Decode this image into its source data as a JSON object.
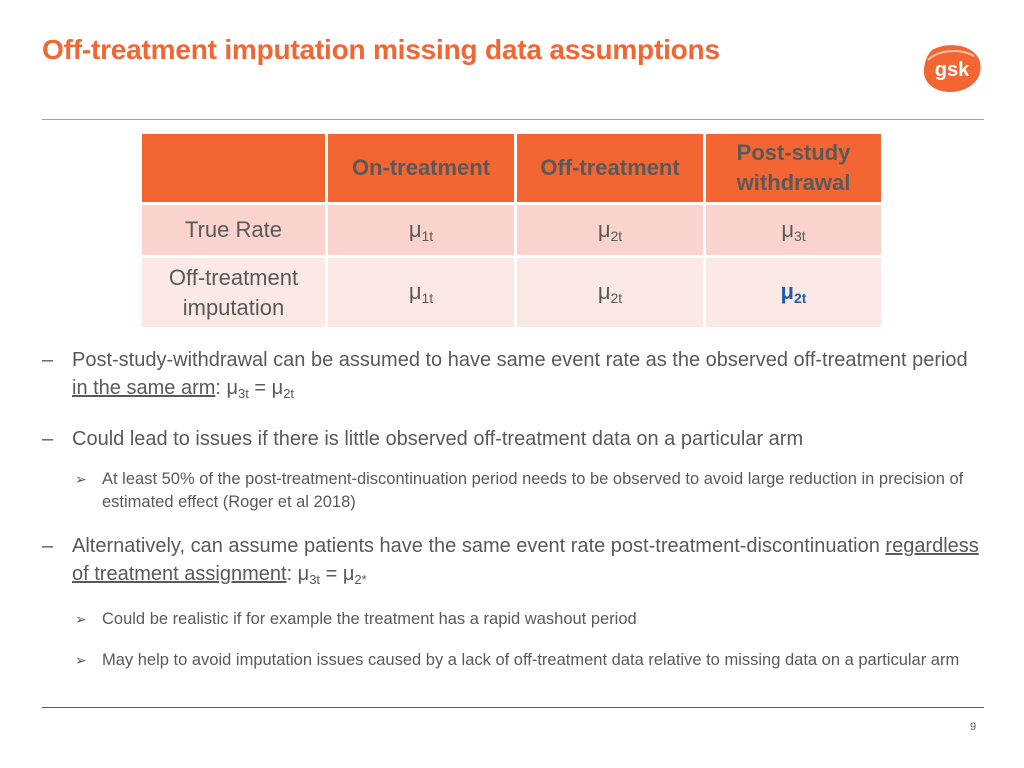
{
  "title": "Off-treatment imputation missing data assumptions",
  "logo_text": "gsk",
  "table": {
    "headers": [
      "",
      "On-treatment",
      "Off-treatment",
      "Post-study withdrawal"
    ],
    "rows": [
      {
        "label": "True Rate",
        "cells": [
          [
            "μ",
            "1t"
          ],
          [
            "μ",
            "2t"
          ],
          [
            "μ",
            "3t"
          ]
        ]
      },
      {
        "label": "Off-treatment imputation",
        "cells": [
          [
            "μ",
            "1t"
          ],
          [
            "μ",
            "2t"
          ],
          [
            "μ",
            "2t"
          ]
        ]
      }
    ]
  },
  "bullets": {
    "b1": {
      "marker": "–",
      "text": "Post-study-withdrawal can be assumed to have same event rate as the observed off-treatment period ",
      "underlined": "in the same arm",
      "eq": ": μ",
      "sub1": "3t",
      "eq2": " = μ",
      "sub2": "2t"
    },
    "b2": {
      "marker": "–",
      "text": "Could lead to issues if there is little observed off-treatment data on a particular arm"
    },
    "b2a": {
      "marker": "➢",
      "text": "At least 50% of the post-treatment-discontinuation period needs to be observed to avoid large reduction in precision of estimated effect (Roger et al 2018)"
    },
    "b3": {
      "marker": "–",
      "text": "Alternatively, can assume patients have the same event rate post-treatment-discontinuation ",
      "underlined": "regardless of treatment assignment",
      "eq": ": μ",
      "sub1": "3t",
      "eq2": " = μ",
      "sub2": "2*"
    },
    "b3a": {
      "marker": "➢",
      "text": "Could be realistic if for example the treatment has a rapid washout period"
    },
    "b3b": {
      "marker": "➢",
      "text": "May help to avoid imputation issues caused by a lack of off-treatment data relative to missing data on a particular arm"
    }
  },
  "page_number": "9",
  "colors": {
    "accent": "#f36633",
    "header_bg": "#f36633",
    "row1_bg": "#f9d3cc",
    "row2_bg": "#fce9e6",
    "highlight": "#1f5ea8",
    "text": "#595959"
  }
}
